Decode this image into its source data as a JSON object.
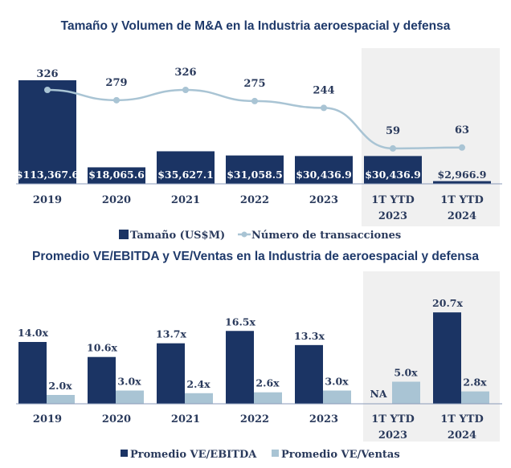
{
  "colors": {
    "dark": "#1b3464",
    "light": "#a9c4d4",
    "shade": "#f0f0f0",
    "text": "#2a3a5c"
  },
  "chart_data": [
    {
      "type": "bar",
      "title": "Tamaño y Volumen de M&A en la Industria aeroespacial y defensa",
      "categories": [
        [
          "2019"
        ],
        [
          "2020"
        ],
        [
          "2021"
        ],
        [
          "2022"
        ],
        [
          "2023"
        ],
        [
          "1T YTD",
          "2023"
        ],
        [
          "1T YTD",
          "2024"
        ]
      ],
      "series": [
        {
          "name": "Tamaño (US$M)",
          "type": "bar",
          "values": [
            113367.6,
            18065.6,
            35627.1,
            31058.5,
            30436.9,
            30436.9,
            2966.9
          ],
          "labels": [
            "$113,367.6",
            "$18,065.6",
            "$35,627.1",
            "$31,058.5",
            "$30,436.9",
            "$30,436.9",
            "$2,966.9"
          ]
        },
        {
          "name": "Número de transacciones",
          "type": "line",
          "values": [
            326,
            279,
            326,
            275,
            244,
            59,
            63
          ],
          "labels": [
            "326",
            "279",
            "326",
            "275",
            "244",
            "59",
            "63"
          ]
        }
      ],
      "highlighted_categories": [
        5,
        6
      ],
      "legend": "bottom"
    },
    {
      "type": "bar",
      "title": "Promedio VE/EBITDA y VE/Ventas en la Industria de aeroespacial y defensa",
      "categories": [
        [
          "2019"
        ],
        [
          "2020"
        ],
        [
          "2021"
        ],
        [
          "2022"
        ],
        [
          "2023"
        ],
        [
          "1T YTD",
          "2023"
        ],
        [
          "1T YTD",
          "2024"
        ]
      ],
      "series": [
        {
          "name": "Promedio VE/EBITDA",
          "values": [
            14.0,
            10.6,
            13.7,
            16.5,
            13.3,
            null,
            20.7
          ],
          "labels": [
            "14.0x",
            "10.6x",
            "13.7x",
            "16.5x",
            "13.3x",
            "NA",
            "20.7x"
          ]
        },
        {
          "name": "Promedio VE/Ventas",
          "values": [
            2.0,
            3.0,
            2.4,
            2.6,
            3.0,
            5.0,
            2.8
          ],
          "labels": [
            "2.0x",
            "3.0x",
            "2.4x",
            "2.6x",
            "3.0x",
            "5.0x",
            "2.8x"
          ]
        }
      ],
      "highlighted_categories": [
        5,
        6
      ],
      "legend": "bottom"
    }
  ]
}
